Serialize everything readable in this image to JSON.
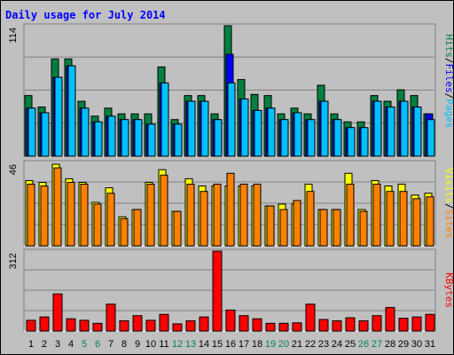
{
  "title": "Daily usage for July 2014",
  "colors": {
    "background": "#c0c0c0",
    "panel": "#c0c0c0",
    "grid": "#808080",
    "hits": "#008040",
    "files": "#0000ff",
    "pages": "#00c0ff",
    "visits": "#ffff00",
    "sites": "#ff8000",
    "kbytes": "#ff0000",
    "title": "#0000ff",
    "weekend": "#00805c",
    "weekday": "#000000"
  },
  "chart_data": [
    {
      "type": "bar",
      "panel": "hits-files-pages",
      "ymax_label": "114",
      "ylim": [
        0,
        114
      ],
      "legend": [
        {
          "text": "Pages",
          "color": "#00c0ff"
        },
        {
          "text": "Files",
          "color": "#0000ff"
        },
        {
          "text": "Hits",
          "color": "#008040"
        }
      ],
      "x": [
        "1",
        "2",
        "3",
        "4",
        "5",
        "6",
        "7",
        "8",
        "9",
        "10",
        "11",
        "12",
        "13",
        "14",
        "15",
        "16",
        "17",
        "18",
        "19",
        "20",
        "21",
        "22",
        "23",
        "24",
        "25",
        "26",
        "27",
        "28",
        "29",
        "30",
        "31"
      ],
      "series": [
        {
          "name": "Hits",
          "values": [
            53,
            43,
            85,
            85,
            48,
            35,
            42,
            37,
            37,
            37,
            78,
            32,
            53,
            53,
            37,
            114,
            67,
            54,
            53,
            37,
            42,
            37,
            62,
            37,
            30,
            30,
            53,
            48,
            58,
            53,
            37
          ]
        },
        {
          "name": "Files",
          "values": [
            42,
            38,
            69,
            79,
            42,
            30,
            35,
            32,
            32,
            28,
            64,
            28,
            48,
            48,
            32,
            89,
            50,
            40,
            42,
            32,
            38,
            32,
            48,
            32,
            25,
            25,
            48,
            43,
            48,
            43,
            37
          ]
        },
        {
          "name": "Pages",
          "values": [
            42,
            38,
            69,
            79,
            42,
            30,
            35,
            32,
            32,
            28,
            64,
            28,
            48,
            48,
            32,
            64,
            50,
            40,
            42,
            32,
            38,
            32,
            48,
            32,
            25,
            25,
            48,
            43,
            48,
            43,
            32
          ]
        }
      ]
    },
    {
      "type": "bar",
      "panel": "visits-sites",
      "ymax_label": "46",
      "ylim": [
        0,
        46
      ],
      "legend": [
        {
          "text": "Sites",
          "color": "#ff8000"
        },
        {
          "text": "Visits",
          "color": "#ffff00"
        }
      ],
      "x": [
        "1",
        "2",
        "3",
        "4",
        "5",
        "6",
        "7",
        "8",
        "9",
        "10",
        "11",
        "12",
        "13",
        "14",
        "15",
        "16",
        "17",
        "18",
        "19",
        "20",
        "21",
        "22",
        "23",
        "24",
        "25",
        "26",
        "27",
        "28",
        "29",
        "30",
        "31"
      ],
      "series": [
        {
          "name": "Visits",
          "values": [
            36,
            35,
            45,
            37,
            35,
            24,
            32,
            16,
            20,
            35,
            42,
            19,
            37,
            33,
            33,
            33,
            33,
            33,
            22,
            23,
            23,
            34,
            20,
            20,
            40,
            20,
            36,
            33,
            34,
            28,
            29
          ]
        },
        {
          "name": "Sites",
          "values": [
            34,
            33,
            43,
            35,
            34,
            23,
            29,
            15,
            20,
            34,
            39,
            19,
            34,
            30,
            34,
            40,
            34,
            34,
            22,
            20,
            25,
            30,
            20,
            20,
            34,
            19,
            34,
            30,
            30,
            26,
            27
          ]
        }
      ]
    },
    {
      "type": "bar",
      "panel": "kbytes",
      "ymax_label": "312",
      "ylim": [
        0,
        312
      ],
      "legend": [
        {
          "text": "KBytes",
          "color": "#ff0000"
        }
      ],
      "x": [
        "1",
        "2",
        "3",
        "4",
        "5",
        "6",
        "7",
        "8",
        "9",
        "10",
        "11",
        "12",
        "13",
        "14",
        "15",
        "16",
        "17",
        "18",
        "19",
        "20",
        "21",
        "22",
        "23",
        "24",
        "25",
        "26",
        "27",
        "28",
        "29",
        "30",
        "31"
      ],
      "series": [
        {
          "name": "KBytes",
          "values": [
            42,
            55,
            145,
            48,
            42,
            30,
            105,
            40,
            60,
            42,
            65,
            28,
            40,
            55,
            312,
            82,
            60,
            48,
            30,
            30,
            32,
            105,
            45,
            40,
            52,
            40,
            60,
            92,
            50,
            55,
            65
          ]
        }
      ]
    }
  ],
  "weekend_days": [
    5,
    6,
    12,
    13,
    19,
    20,
    26,
    27
  ]
}
